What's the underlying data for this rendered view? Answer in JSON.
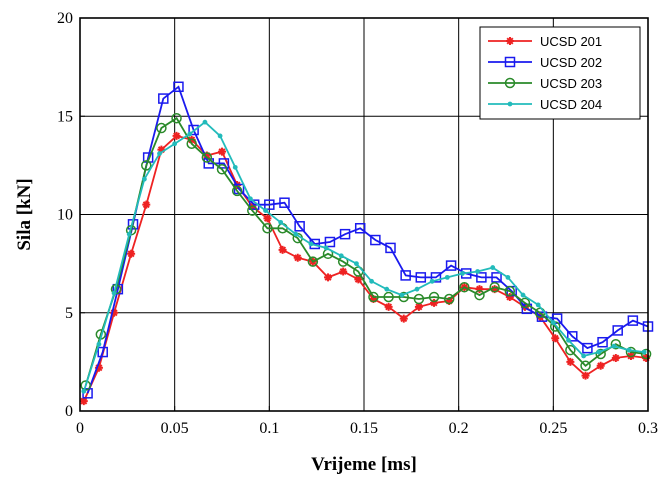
{
  "chart_data": {
    "type": "line",
    "xlabel": "Vrijeme [ms]",
    "ylabel": "Sila [kN]",
    "xlim": [
      0,
      0.3
    ],
    "ylim": [
      0,
      20
    ],
    "xticks": [
      0,
      0.05,
      0.1,
      0.15,
      0.2,
      0.25,
      0.3
    ],
    "xtick_labels": [
      "0",
      "0.05",
      "0.1",
      "0.15",
      "0.2",
      "0.25",
      "0.3"
    ],
    "yticks": [
      0,
      5,
      10,
      15,
      20
    ],
    "ytick_labels": [
      "0",
      "5",
      "10",
      "15",
      "20"
    ],
    "grid": true,
    "legend_position": "top-right",
    "series": [
      {
        "name": "UCSD 201",
        "color": "#ee2222",
        "marker": "star",
        "x": [
          0.002,
          0.01,
          0.018,
          0.027,
          0.035,
          0.043,
          0.051,
          0.059,
          0.067,
          0.075,
          0.083,
          0.091,
          0.099,
          0.107,
          0.115,
          0.123,
          0.131,
          0.139,
          0.147,
          0.155,
          0.163,
          0.171,
          0.179,
          0.187,
          0.195,
          0.203,
          0.211,
          0.219,
          0.227,
          0.235,
          0.243,
          0.251,
          0.259,
          0.267,
          0.275,
          0.283,
          0.291,
          0.299
        ],
        "y": [
          0.5,
          2.2,
          5,
          8,
          10.5,
          13.3,
          14,
          13.8,
          13,
          13.2,
          11.5,
          10.4,
          9.8,
          8.2,
          7.8,
          7.6,
          6.8,
          7.1,
          6.7,
          5.7,
          5.3,
          4.7,
          5.3,
          5.5,
          5.6,
          6.3,
          6.2,
          6.2,
          5.8,
          5.3,
          4.8,
          3.7,
          2.5,
          1.8,
          2.3,
          2.7,
          2.8,
          2.7
        ]
      },
      {
        "name": "UCSD 202",
        "color": "#1a1aee",
        "marker": "square",
        "x": [
          0.004,
          0.012,
          0.02,
          0.028,
          0.036,
          0.044,
          0.052,
          0.06,
          0.068,
          0.076,
          0.084,
          0.092,
          0.1,
          0.108,
          0.116,
          0.124,
          0.132,
          0.14,
          0.148,
          0.156,
          0.164,
          0.172,
          0.18,
          0.188,
          0.196,
          0.204,
          0.212,
          0.22,
          0.228,
          0.236,
          0.244,
          0.252,
          0.26,
          0.268,
          0.276,
          0.284,
          0.292,
          0.3
        ],
        "y": [
          0.9,
          3,
          6.2,
          9.5,
          12.9,
          15.9,
          16.5,
          14.3,
          12.6,
          12.6,
          11.3,
          10.5,
          10.5,
          10.6,
          9.4,
          8.5,
          8.6,
          9,
          9.3,
          8.7,
          8.3,
          6.9,
          6.8,
          6.8,
          7.4,
          7,
          6.8,
          6.8,
          6.1,
          5.2,
          4.8,
          4.7,
          3.8,
          3.2,
          3.5,
          4.1,
          4.6,
          4.3
        ]
      },
      {
        "name": "UCSD 203",
        "color": "#2a8a2a",
        "marker": "circle",
        "x": [
          0.003,
          0.011,
          0.019,
          0.027,
          0.035,
          0.043,
          0.051,
          0.059,
          0.067,
          0.075,
          0.083,
          0.091,
          0.099,
          0.107,
          0.115,
          0.123,
          0.131,
          0.139,
          0.147,
          0.155,
          0.163,
          0.171,
          0.179,
          0.187,
          0.195,
          0.203,
          0.211,
          0.219,
          0.227,
          0.235,
          0.243,
          0.251,
          0.259,
          0.267,
          0.275,
          0.283,
          0.291,
          0.299
        ],
        "y": [
          1.3,
          3.9,
          6.2,
          9.2,
          12.5,
          14.4,
          14.9,
          13.6,
          12.9,
          12.3,
          11.2,
          10.2,
          9.3,
          9.3,
          8.8,
          7.6,
          8,
          7.6,
          7.1,
          5.8,
          5.8,
          5.8,
          5.7,
          5.8,
          5.7,
          6.3,
          5.9,
          6.3,
          6.1,
          5.5,
          5,
          4.3,
          3.1,
          2.3,
          2.9,
          3.4,
          3,
          2.9
        ]
      },
      {
        "name": "UCSD 204",
        "color": "#22bbbb",
        "marker": "dot",
        "x": [
          0.002,
          0.01,
          0.018,
          0.026,
          0.034,
          0.042,
          0.05,
          0.058,
          0.066,
          0.074,
          0.082,
          0.09,
          0.098,
          0.106,
          0.114,
          0.122,
          0.13,
          0.138,
          0.146,
          0.154,
          0.162,
          0.17,
          0.178,
          0.186,
          0.194,
          0.202,
          0.21,
          0.218,
          0.226,
          0.234,
          0.242,
          0.25,
          0.258,
          0.266,
          0.274,
          0.282,
          0.29,
          0.298
        ],
        "y": [
          1,
          3.4,
          6,
          9,
          11.8,
          13.1,
          13.6,
          14.1,
          14.7,
          14.0,
          12.4,
          10.8,
          10.2,
          9.6,
          9.0,
          8.5,
          8.3,
          7.9,
          7.5,
          6.6,
          6.2,
          5.9,
          6.2,
          6.6,
          6.8,
          7.0,
          7.1,
          7.3,
          6.8,
          5.9,
          5.4,
          4.5,
          3.6,
          2.8,
          3.0,
          3.3,
          3.1,
          3.0
        ]
      }
    ]
  }
}
